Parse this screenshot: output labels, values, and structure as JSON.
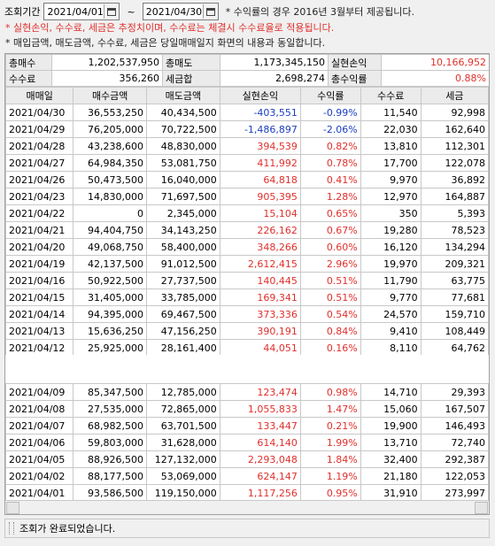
{
  "query": {
    "label": "조회기간",
    "start_date": "2021/04/01",
    "tilde": "~",
    "end_date": "2021/04/30",
    "note1": "* 수익률의 경우 2016년 3월부터 제공됩니다.",
    "note2": "* 실현손익, 수수료, 세금은 추정치이며, 수수료는 체결시 수수료율로 적용됩니다.",
    "note3": "* 매입금액, 매도금액, 수수료, 세금은 당일매매일지 화면의 내용과 동일합니다."
  },
  "summary": {
    "row1": [
      {
        "k": "총매수",
        "v": "1,202,537,950"
      },
      {
        "k": "총매도",
        "v": "1,173,345,150"
      },
      {
        "k": "실현손익",
        "v": "10,166,952"
      }
    ],
    "row2": [
      {
        "k": "수수료",
        "v": "356,260"
      },
      {
        "k": "세금합",
        "v": "2,698,274"
      },
      {
        "k": "총수익률",
        "v": "0.88%"
      }
    ]
  },
  "table": {
    "columns": [
      "매매일",
      "매수금액",
      "매도금액",
      "실현손익",
      "수익률",
      "수수료",
      "세금"
    ],
    "rows_upper": [
      {
        "date": "2021/04/30",
        "buy": "36,553,250",
        "sell": "40,434,500",
        "pnl": "-403,551",
        "rate": "-0.99%",
        "fee": "11,540",
        "tax": "92,998",
        "sign": "neg",
        "selected": true
      },
      {
        "date": "2021/04/29",
        "buy": "76,205,000",
        "sell": "70,722,500",
        "pnl": "-1,486,897",
        "rate": "-2.06%",
        "fee": "22,030",
        "tax": "162,640",
        "sign": "neg"
      },
      {
        "date": "2021/04/28",
        "buy": "43,238,600",
        "sell": "48,830,000",
        "pnl": "394,539",
        "rate": "0.82%",
        "fee": "13,810",
        "tax": "112,301",
        "sign": "pos"
      },
      {
        "date": "2021/04/27",
        "buy": "64,984,350",
        "sell": "53,081,750",
        "pnl": "411,992",
        "rate": "0.78%",
        "fee": "17,700",
        "tax": "122,078",
        "sign": "pos"
      },
      {
        "date": "2021/04/26",
        "buy": "50,473,500",
        "sell": "16,040,000",
        "pnl": "64,818",
        "rate": "0.41%",
        "fee": "9,970",
        "tax": "36,892",
        "sign": "pos"
      },
      {
        "date": "2021/04/23",
        "buy": "14,830,000",
        "sell": "71,697,500",
        "pnl": "905,395",
        "rate": "1.28%",
        "fee": "12,970",
        "tax": "164,887",
        "sign": "pos"
      },
      {
        "date": "2021/04/22",
        "buy": "0",
        "sell": "2,345,000",
        "pnl": "15,104",
        "rate": "0.65%",
        "fee": "350",
        "tax": "5,393",
        "sign": "pos"
      },
      {
        "date": "2021/04/21",
        "buy": "94,404,750",
        "sell": "34,143,250",
        "pnl": "226,162",
        "rate": "0.67%",
        "fee": "19,280",
        "tax": "78,523",
        "sign": "pos"
      },
      {
        "date": "2021/04/20",
        "buy": "49,068,750",
        "sell": "58,400,000",
        "pnl": "348,266",
        "rate": "0.60%",
        "fee": "16,120",
        "tax": "134,294",
        "sign": "pos"
      },
      {
        "date": "2021/04/19",
        "buy": "42,137,500",
        "sell": "91,012,500",
        "pnl": "2,612,415",
        "rate": "2.96%",
        "fee": "19,970",
        "tax": "209,321",
        "sign": "pos"
      },
      {
        "date": "2021/04/16",
        "buy": "50,922,500",
        "sell": "27,737,500",
        "pnl": "140,445",
        "rate": "0.51%",
        "fee": "11,790",
        "tax": "63,775",
        "sign": "pos"
      },
      {
        "date": "2021/04/15",
        "buy": "31,405,000",
        "sell": "33,785,000",
        "pnl": "169,341",
        "rate": "0.51%",
        "fee": "9,770",
        "tax": "77,681",
        "sign": "pos"
      },
      {
        "date": "2021/04/14",
        "buy": "94,395,000",
        "sell": "69,467,500",
        "pnl": "373,336",
        "rate": "0.54%",
        "fee": "24,570",
        "tax": "159,710",
        "sign": "pos"
      },
      {
        "date": "2021/04/13",
        "buy": "15,636,250",
        "sell": "47,156,250",
        "pnl": "390,191",
        "rate": "0.84%",
        "fee": "9,410",
        "tax": "108,449",
        "sign": "pos"
      },
      {
        "date": "2021/04/12",
        "buy": "25,925,000",
        "sell": "28,161,400",
        "pnl": "44,051",
        "rate": "0.16%",
        "fee": "8,110",
        "tax": "64,762",
        "sign": "pos"
      }
    ],
    "rows_lower": [
      {
        "date": "2021/04/09",
        "buy": "85,347,500",
        "sell": "12,785,000",
        "pnl": "123,474",
        "rate": "0.98%",
        "fee": "14,710",
        "tax": "29,393",
        "sign": "pos"
      },
      {
        "date": "2021/04/08",
        "buy": "27,535,000",
        "sell": "72,865,000",
        "pnl": "1,055,833",
        "rate": "1.47%",
        "fee": "15,060",
        "tax": "167,507",
        "sign": "pos"
      },
      {
        "date": "2021/04/07",
        "buy": "68,982,500",
        "sell": "63,701,500",
        "pnl": "133,447",
        "rate": "0.21%",
        "fee": "19,900",
        "tax": "146,493",
        "sign": "pos"
      },
      {
        "date": "2021/04/06",
        "buy": "59,803,000",
        "sell": "31,628,000",
        "pnl": "614,140",
        "rate": "1.99%",
        "fee": "13,710",
        "tax": "72,740",
        "sign": "pos"
      },
      {
        "date": "2021/04/05",
        "buy": "88,926,500",
        "sell": "127,132,000",
        "pnl": "2,293,048",
        "rate": "1.84%",
        "fee": "32,400",
        "tax": "292,387",
        "sign": "pos"
      },
      {
        "date": "2021/04/02",
        "buy": "88,177,500",
        "sell": "53,069,000",
        "pnl": "624,147",
        "rate": "1.19%",
        "fee": "21,180",
        "tax": "122,053",
        "sign": "pos"
      },
      {
        "date": "2021/04/01",
        "buy": "93,586,500",
        "sell": "119,150,000",
        "pnl": "1,117,256",
        "rate": "0.95%",
        "fee": "31,910",
        "tax": "273,997",
        "sign": "pos"
      }
    ]
  },
  "status": {
    "message": "조회가 완료되었습니다."
  },
  "colors": {
    "positive": "#e0302c",
    "negative": "#1c3fbf",
    "selected_row": "#c6dff7"
  }
}
